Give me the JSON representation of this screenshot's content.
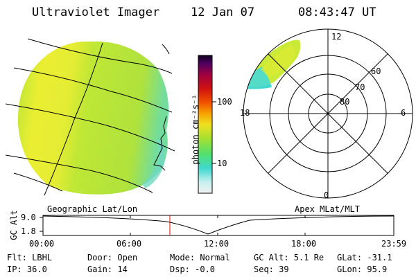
{
  "header": {
    "instrument": "Ultraviolet Imager",
    "date": "12 Jan 07",
    "time": "08:43:47 UT"
  },
  "colorbar": {
    "label": "photon cm⁻²s⁻¹",
    "ticks": [
      "100",
      "10"
    ]
  },
  "polar_plot": {
    "mlt_labels": [
      "12",
      "18",
      "6",
      "0"
    ],
    "lat_labels": [
      "60",
      "70",
      "80"
    ]
  },
  "timeline": {
    "left_title": "Geographic Lat/Lon",
    "right_title": "Apex MLat/MLT",
    "y_axis_label": "GC Alt",
    "y_ticks": [
      "9.0",
      "1.8"
    ],
    "x_ticks": [
      "00:00",
      "06:00",
      "12:00",
      "18:00",
      "23:59"
    ],
    "marker_time": "08:43:47"
  },
  "status": {
    "flt": "Flt: LBHL",
    "ip": "IP: 36.0",
    "door": "Door: Open",
    "gain": "Gain: 14",
    "mode": "Mode: Normal",
    "dsp": "Dsp:  -0.0",
    "gc_alt": "GC Alt: 5.1 Re",
    "seq": "Seq: 39",
    "glat": "GLat: -31.1",
    "glon": "GLon:  95.9"
  },
  "colors": {
    "image_green": "#b8e82a",
    "image_yellow": "#e8ec28",
    "image_cyan": "#40d8d0",
    "marker_red": "#e00000"
  }
}
